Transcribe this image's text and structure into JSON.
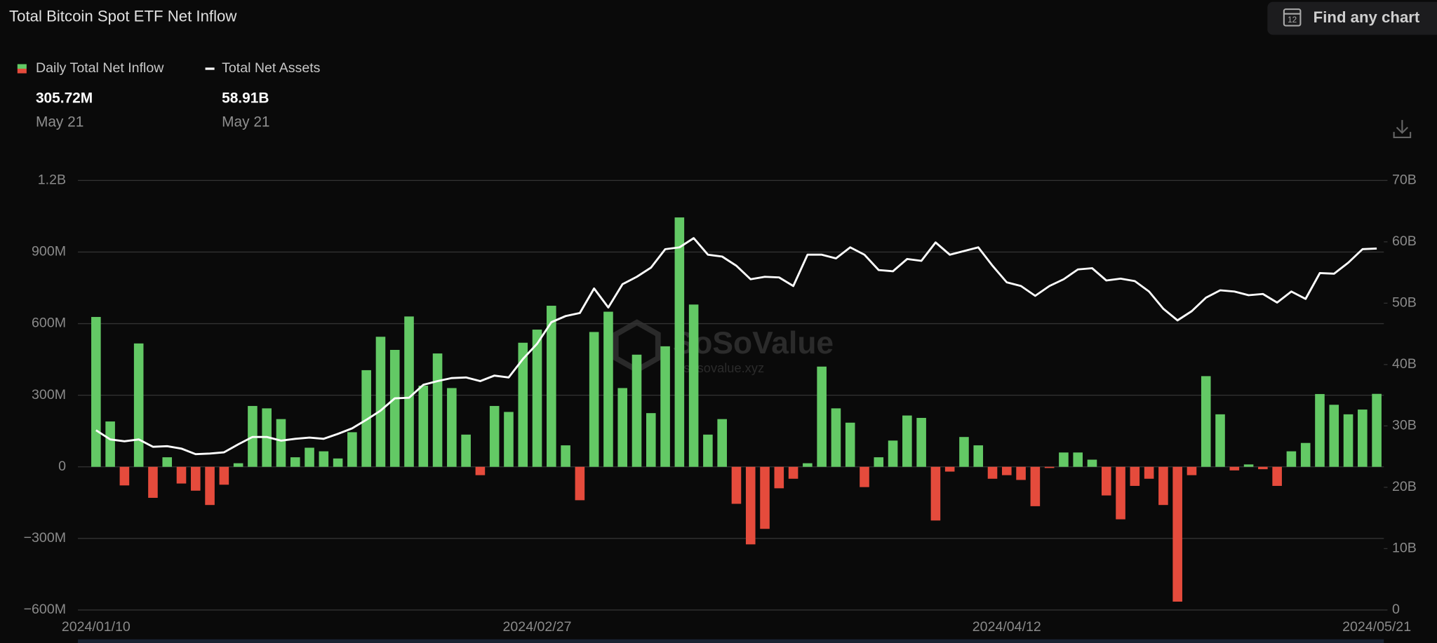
{
  "chart_data": {
    "type": "bar-line",
    "title": "Total Bitcoin Spot ETF Net Inflow",
    "search_button": "Find any chart",
    "search_icon_day": "12",
    "watermark": "SoSoValue",
    "watermark_url": "sosovalue.xyz",
    "categories": [
      "2024/01/10",
      null,
      null,
      null,
      null,
      null,
      null,
      null,
      null,
      null,
      null,
      null,
      null,
      null,
      null,
      null,
      null,
      null,
      null,
      null,
      null,
      null,
      null,
      null,
      null,
      null,
      null,
      null,
      null,
      null,
      null,
      "2024/02/27",
      null,
      null,
      null,
      null,
      null,
      null,
      null,
      null,
      null,
      null,
      null,
      null,
      null,
      null,
      null,
      null,
      null,
      null,
      null,
      null,
      null,
      null,
      null,
      null,
      null,
      null,
      null,
      null,
      null,
      null,
      null,
      null,
      "2024/04/12",
      null,
      null,
      null,
      null,
      null,
      null,
      null,
      null,
      null,
      null,
      null,
      null,
      null,
      null,
      null,
      null,
      null,
      null,
      null,
      null,
      null,
      null,
      null,
      null,
      null,
      "2024/05/21"
    ],
    "series": [
      {
        "name": "Daily Total Net Inflow",
        "type": "bar",
        "color": "#63c965",
        "negative_color": "#e54b3c",
        "latest_label": "305.72M",
        "latest_date": "May 21",
        "values": [
          628000000,
          190000000,
          -78000000,
          517000000,
          -130000000,
          40000000,
          -70000000,
          -100000000,
          -160000000,
          -75000000,
          15000000,
          255000000,
          245000000,
          200000000,
          40000000,
          80000000,
          65000000,
          35000000,
          145000000,
          405000000,
          545000000,
          490000000,
          630000000,
          340000000,
          475000000,
          330000000,
          135000000,
          -35000000,
          255000000,
          230000000,
          520000000,
          575000000,
          675000000,
          90000000,
          -140000000,
          565000000,
          650000000,
          330000000,
          470000000,
          225000000,
          505000000,
          1045000000,
          680000000,
          135000000,
          200000000,
          -155000000,
          -325000000,
          -260000000,
          -90000000,
          -50000000,
          15000000,
          420000000,
          245000000,
          185000000,
          -85000000,
          40000000,
          110000000,
          215000000,
          205000000,
          -225000000,
          -20000000,
          125000000,
          90000000,
          -50000000,
          -35000000,
          -55000000,
          -165000000,
          -5000000,
          60000000,
          60000000,
          30000000,
          -120000000,
          -220000000,
          -80000000,
          -50000000,
          -160000000,
          -565000000,
          -35000000,
          380000000,
          220000000,
          -15000000,
          10000000,
          -10000000,
          -80000000,
          65000000,
          100000000,
          305000000,
          260000000,
          220000000,
          240000000,
          305720000
        ]
      },
      {
        "name": "Total Net Assets",
        "type": "line",
        "axis": "y2",
        "color": "#ffffff",
        "latest_label": "58.91B",
        "latest_date": "May 21",
        "values": [
          29300000000,
          27800000000,
          27500000000,
          27800000000,
          26600000000,
          26700000000,
          26300000000,
          25400000000,
          25500000000,
          25700000000,
          27000000000,
          28200000000,
          28200000000,
          27600000000,
          27900000000,
          28100000000,
          27900000000,
          28700000000,
          29600000000,
          31000000000,
          32500000000,
          34500000000,
          34600000000,
          36700000000,
          37300000000,
          37800000000,
          37900000000,
          37300000000,
          38200000000,
          37900000000,
          40900000000,
          43400000000,
          46900000000,
          47900000000,
          48400000000,
          52400000000,
          49300000000,
          53100000000,
          54300000000,
          55800000000,
          58800000000,
          59100000000,
          60600000000,
          57900000000,
          57600000000,
          56100000000,
          53900000000,
          54300000000,
          54200000000,
          52800000000,
          57900000000,
          57900000000,
          57300000000,
          59100000000,
          57900000000,
          55400000000,
          55200000000,
          57200000000,
          56900000000,
          59900000000,
          57900000000,
          58500000000,
          59100000000,
          56100000000,
          53400000000,
          52800000000,
          51200000000,
          52800000000,
          53900000000,
          55500000000,
          55700000000,
          53700000000,
          54000000000,
          53600000000,
          51900000000,
          49100000000,
          47200000000,
          48700000000,
          50900000000,
          52100000000,
          51900000000,
          51300000000,
          51500000000,
          50100000000,
          51900000000,
          50700000000,
          54900000000,
          54800000000,
          56600000000,
          58800000000,
          58910000000
        ]
      }
    ],
    "ylim": [
      -600000000,
      1200000000
    ],
    "yticks": [
      {
        "value": -600000000,
        "label": "−600M"
      },
      {
        "value": -300000000,
        "label": "−300M"
      },
      0,
      {
        "value": 300000000,
        "label": "300M"
      },
      {
        "value": 600000000,
        "label": "600M"
      },
      {
        "value": 900000000,
        "label": "900M"
      },
      {
        "value": 1200000000,
        "label": "1.2B"
      }
    ],
    "y2lim": [
      0,
      70000000000
    ],
    "y2ticks": [
      0,
      {
        "value": 10000000000,
        "label": "10B"
      },
      {
        "value": 20000000000,
        "label": "20B"
      },
      {
        "value": 30000000000,
        "label": "30B"
      },
      {
        "value": 40000000000,
        "label": "40B"
      },
      {
        "value": 50000000000,
        "label": "50B"
      },
      {
        "value": 60000000000,
        "label": "60B"
      },
      {
        "value": 70000000000,
        "label": "70B"
      }
    ],
    "grid": true
  }
}
